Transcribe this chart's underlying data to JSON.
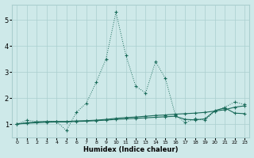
{
  "title": "",
  "xlabel": "Humidex (Indice chaleur)",
  "xlim": [
    -0.5,
    23.5
  ],
  "ylim": [
    0.5,
    5.6
  ],
  "yticks": [
    1,
    2,
    3,
    4,
    5
  ],
  "xticks": [
    0,
    1,
    2,
    3,
    4,
    5,
    6,
    7,
    8,
    9,
    10,
    11,
    12,
    13,
    14,
    15,
    16,
    17,
    18,
    19,
    20,
    21,
    22,
    23
  ],
  "bg_color": "#cee9e9",
  "line_color": "#1a6b5a",
  "grid_color": "#aacfcf",
  "series1_x": [
    0,
    1,
    2,
    3,
    4,
    5,
    6,
    7,
    8,
    9,
    10,
    11,
    12,
    13,
    14,
    15,
    16,
    17,
    18,
    19,
    20,
    21,
    22,
    23
  ],
  "series1_y": [
    1.0,
    1.15,
    1.1,
    1.1,
    1.1,
    0.75,
    1.45,
    1.8,
    2.6,
    3.5,
    5.3,
    3.65,
    2.45,
    2.2,
    3.4,
    2.75,
    1.35,
    1.05,
    1.2,
    1.15,
    1.5,
    1.65,
    1.85,
    1.75
  ],
  "series1_style": "dotted",
  "series2_x": [
    0,
    1,
    2,
    3,
    4,
    5,
    6,
    7,
    8,
    9,
    10,
    11,
    12,
    13,
    14,
    15,
    16,
    17,
    18,
    19,
    20,
    21,
    22,
    23
  ],
  "series2_y": [
    1.0,
    1.05,
    1.08,
    1.1,
    1.1,
    1.1,
    1.12,
    1.13,
    1.15,
    1.18,
    1.22,
    1.25,
    1.27,
    1.3,
    1.33,
    1.35,
    1.38,
    1.4,
    1.42,
    1.45,
    1.5,
    1.55,
    1.65,
    1.7
  ],
  "series2_style": "solid",
  "series3_x": [
    0,
    1,
    2,
    3,
    4,
    5,
    6,
    7,
    8,
    9,
    10,
    11,
    12,
    13,
    14,
    15,
    16,
    17,
    18,
    19,
    20,
    21,
    22,
    23
  ],
  "series3_y": [
    1.0,
    1.03,
    1.05,
    1.07,
    1.08,
    1.08,
    1.1,
    1.11,
    1.13,
    1.15,
    1.18,
    1.2,
    1.22,
    1.24,
    1.26,
    1.28,
    1.3,
    1.18,
    1.16,
    1.2,
    1.52,
    1.62,
    1.42,
    1.4
  ],
  "series3_style": "solid"
}
